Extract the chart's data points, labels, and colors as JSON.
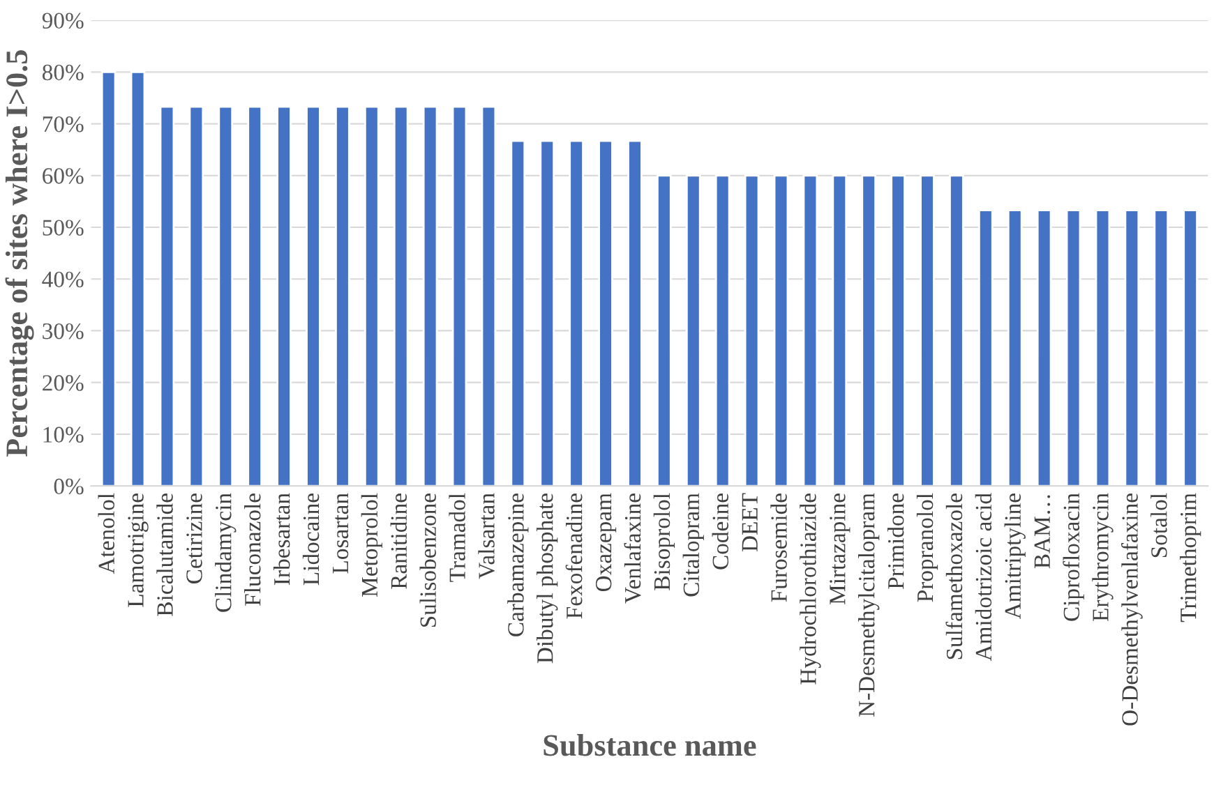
{
  "chart_data": {
    "type": "bar",
    "xlabel": "Substance name",
    "ylabel": "Percentage of sites where I>0.5",
    "categories": [
      "Atenolol",
      "Lamotrigine",
      "Bicalutamide",
      "Cetirizine",
      "Clindamycin",
      "Fluconazole",
      "Irbesartan",
      "Lidocaine",
      "Losartan",
      "Metoprolol",
      "Ranitidine",
      "Sulisobenzone",
      "Tramadol",
      "Valsartan",
      "Carbamazepine",
      "Dibutyl phosphate",
      "Fexofenadine",
      "Oxazepam",
      "Venlafaxine",
      "Bisoprolol",
      "Citalopram",
      "Codeine",
      "DEET",
      "Furosemide",
      "Hydrochlorothiazide",
      "Mirtazapine",
      "N-Desmethylcitalopram",
      "Primidone",
      "Propranolol",
      "Sulfamethoxazole",
      "Amidotrizoic acid",
      "Amitriptyline",
      "BAM…",
      "Ciprofloxacin",
      "Erythromycin",
      "O-Desmethylvenlafaxine",
      "Sotalol",
      "Trimethoprim"
    ],
    "values": [
      80,
      80,
      73.3,
      73.3,
      73.3,
      73.3,
      73.3,
      73.3,
      73.3,
      73.3,
      73.3,
      73.3,
      73.3,
      73.3,
      66.7,
      66.7,
      66.7,
      66.7,
      66.7,
      60,
      60,
      60,
      60,
      60,
      60,
      60,
      60,
      60,
      60,
      60,
      53.3,
      53.3,
      53.3,
      53.3,
      53.3,
      53.3,
      53.3,
      53.3
    ],
    "color": "#4472c4",
    "ylim": [
      0,
      90
    ],
    "yticks": [
      {
        "value": 0,
        "label": "0%"
      },
      {
        "value": 10,
        "label": "10%"
      },
      {
        "value": 20,
        "label": "20%"
      },
      {
        "value": 30,
        "label": "30%"
      },
      {
        "value": 40,
        "label": "40%"
      },
      {
        "value": 50,
        "label": "50%"
      },
      {
        "value": 60,
        "label": "60%"
      },
      {
        "value": 70,
        "label": "70%"
      },
      {
        "value": 80,
        "label": "80%"
      },
      {
        "value": 90,
        "label": "90%"
      }
    ],
    "grid": "y",
    "legend": false
  }
}
